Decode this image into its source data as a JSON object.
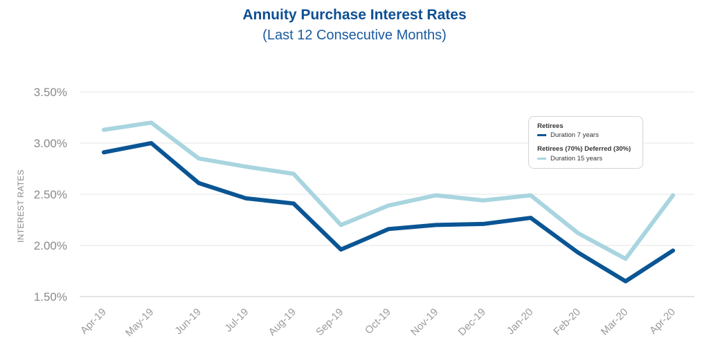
{
  "chart_data": {
    "type": "line",
    "title": "Annuity Purchase Interest Rates",
    "subtitle": "(Last 12 Consecutive Months)",
    "xlabel": "",
    "ylabel": "INTEREST RATES",
    "categories": [
      "Apr-19",
      "May-19",
      "Jun-19",
      "Jul-19",
      "Aug-19",
      "Sep-19",
      "Oct-19",
      "Nov-19",
      "Dec-19",
      "Jan-20",
      "Feb-20",
      "Mar-20",
      "Apr-20"
    ],
    "yticks": [
      1.5,
      2.0,
      2.5,
      3.0,
      3.5
    ],
    "ytick_labels": [
      "1.50%",
      "2.00%",
      "2.50%",
      "3.00%",
      "3.50%"
    ],
    "ylim": [
      1.5,
      3.5
    ],
    "grid": true,
    "series": [
      {
        "name": "Retirees (70%) Deferred (30%)",
        "group_label": "Retirees (70%) Deferred (30%)",
        "item_label": "Duration 15 years",
        "color": "#a8d5df",
        "values": [
          3.13,
          3.2,
          2.85,
          2.77,
          2.7,
          2.2,
          2.39,
          2.49,
          2.44,
          2.49,
          2.12,
          1.87,
          2.49
        ]
      },
      {
        "name": "Retirees",
        "group_label": "Retirees",
        "item_label": "Duration 7 years",
        "color": "#0a5594",
        "values": [
          2.91,
          3.0,
          2.61,
          2.46,
          2.41,
          1.96,
          2.16,
          2.2,
          2.21,
          2.27,
          1.93,
          1.65,
          1.95
        ]
      }
    ],
    "legend_position": "top-right"
  }
}
